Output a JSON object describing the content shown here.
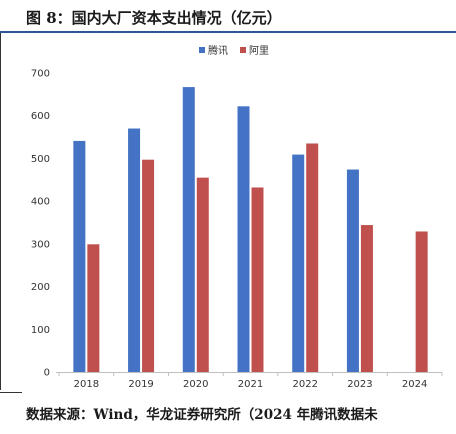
{
  "header": {
    "title": "图 8：国内大厂资本支出情况（亿元）"
  },
  "footer": {
    "source": "数据来源：Wind，华龙证券研究所（2024 年腾讯数据未"
  },
  "colors": {
    "tencent": "#4472c4",
    "alibaba": "#c0504d",
    "axis": "#bfbfbf",
    "tick_text": "#333333"
  },
  "chart_data": {
    "type": "bar",
    "categories": [
      "2018",
      "2019",
      "2020",
      "2021",
      "2022",
      "2023",
      "2024"
    ],
    "series": [
      {
        "name": "腾讯",
        "values": [
          541,
          570,
          667,
          622,
          509,
          474,
          null
        ]
      },
      {
        "name": "阿里",
        "values": [
          299,
          497,
          455,
          432,
          535,
          344,
          329
        ]
      }
    ],
    "ylim": [
      0,
      700
    ],
    "yticks": [
      0,
      100,
      200,
      300,
      400,
      500,
      600,
      700
    ],
    "grid": false,
    "legend_position": "top-center",
    "xlabel": "",
    "ylabel": ""
  }
}
